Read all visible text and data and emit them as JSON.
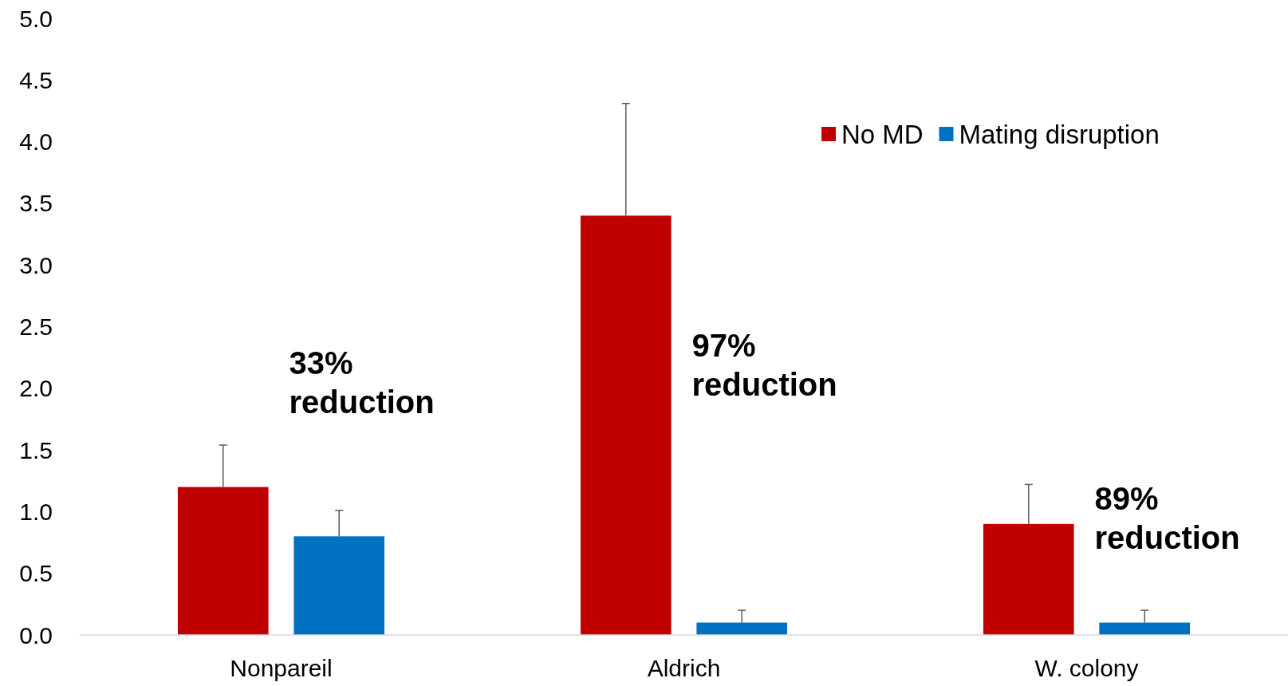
{
  "chart_data": {
    "type": "bar",
    "categories": [
      "Nonpareil",
      "Aldrich",
      "W. colony"
    ],
    "series": [
      {
        "name": "No MD",
        "color": "#c00000",
        "values": [
          1.2,
          3.4,
          0.9
        ],
        "errors": [
          [
            1.2,
            1.54
          ],
          [
            3.4,
            4.31
          ],
          [
            0.9,
            1.22
          ]
        ]
      },
      {
        "name": "Mating disruption",
        "color": "#0070c0",
        "values": [
          0.8,
          0.1,
          0.1
        ],
        "errors": [
          [
            0.8,
            1.01
          ],
          [
            0.1,
            0.2
          ],
          [
            0.1,
            0.2
          ]
        ]
      }
    ],
    "ylim": [
      0,
      5
    ],
    "yticks": [
      {
        "value": 0,
        "label": "0.0"
      },
      {
        "value": 0.5,
        "label": "0.5"
      },
      {
        "value": 1,
        "label": "1.0"
      },
      {
        "value": 1.5,
        "label": "1.5"
      },
      {
        "value": 2,
        "label": "2.0"
      },
      {
        "value": 2.5,
        "label": "2.5"
      },
      {
        "value": 3,
        "label": "3.0"
      },
      {
        "value": 3.5,
        "label": "3.5"
      },
      {
        "value": 4,
        "label": "4.0"
      },
      {
        "value": 4.5,
        "label": "4.5"
      },
      {
        "value": 5,
        "label": "5.0"
      }
    ],
    "grid": false,
    "legend": "top right",
    "annotations": [
      "33% reduction",
      "97% reduction",
      "89% reduction"
    ]
  }
}
